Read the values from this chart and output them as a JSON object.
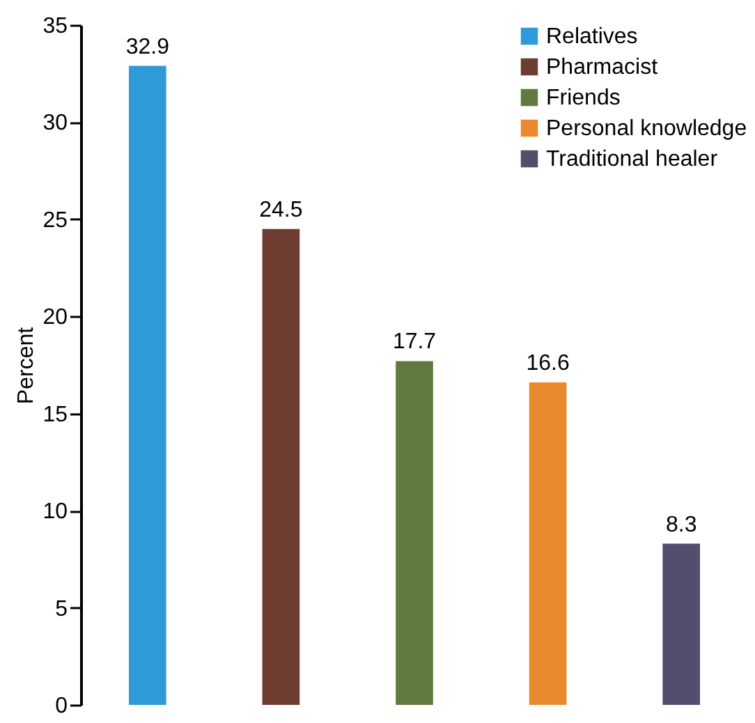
{
  "chart_data": {
    "type": "bar",
    "ylabel": "Percent",
    "categories": [
      null,
      null,
      null,
      null,
      null
    ],
    "series": [
      {
        "name": "Relatives",
        "color": "#2f9ad8",
        "values": [
          32.9,
          null,
          null,
          null,
          null
        ]
      },
      {
        "name": "Pharmacist",
        "color": "#6e3d32",
        "values": [
          null,
          24.5,
          null,
          null,
          null
        ]
      },
      {
        "name": "Friends",
        "color": "#607a40",
        "values": [
          null,
          null,
          17.7,
          null,
          null
        ]
      },
      {
        "name": "Personal knowledge",
        "color": "#e98a2e",
        "values": [
          null,
          null,
          null,
          16.6,
          null
        ]
      },
      {
        "name": "Traditional healer",
        "color": "#544d6e",
        "values": [
          null,
          null,
          null,
          null,
          8.3
        ]
      }
    ],
    "stacked": true,
    "ylim": [
      0,
      35
    ],
    "yticks": [
      0,
      5,
      10,
      15,
      20,
      25,
      30,
      35
    ],
    "tick_labels": "y",
    "data_labels": true,
    "legend": "top right",
    "grid": false
  }
}
